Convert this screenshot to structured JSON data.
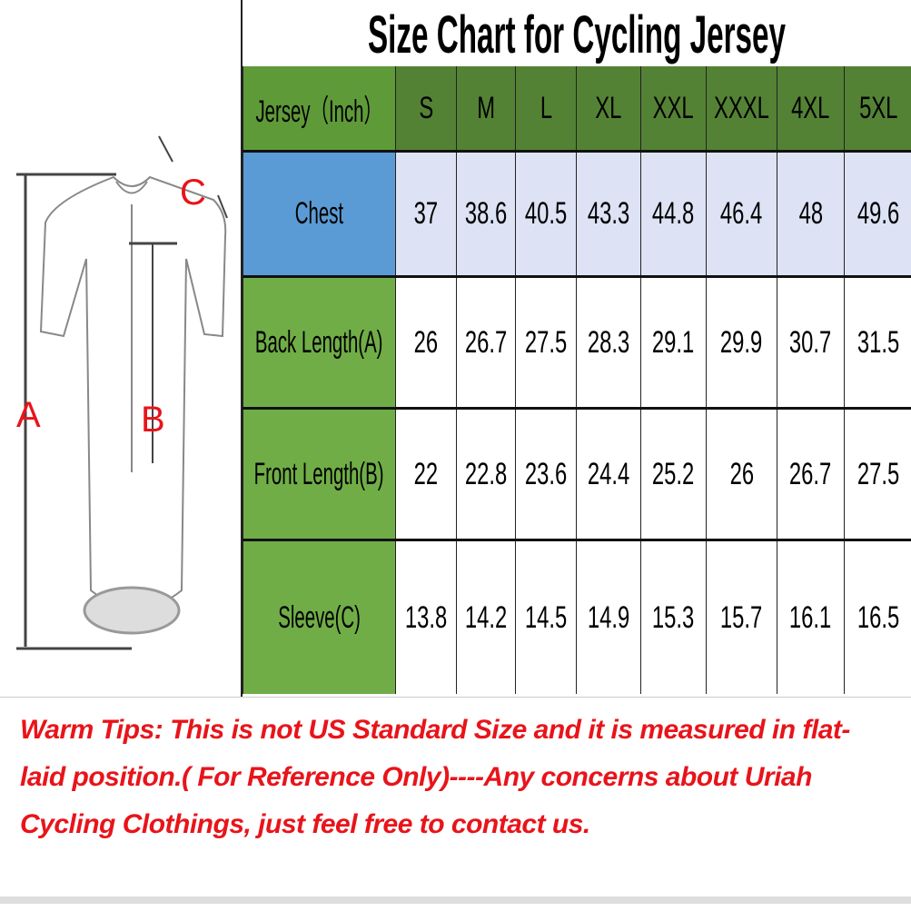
{
  "title": "Size Chart for Cycling Jersey",
  "diagram": {
    "labels": {
      "a": "A",
      "b": "B",
      "c": "C"
    }
  },
  "table": {
    "corner": "Jersey（Inch）",
    "sizes": [
      "S",
      "M",
      "L",
      "XL",
      "XXL",
      "XXXL",
      "4XL",
      "5XL"
    ],
    "rows": [
      {
        "label": "Chest",
        "values": [
          "37",
          "38.6",
          "40.5",
          "43.3",
          "44.8",
          "46.4",
          "48",
          "49.6"
        ]
      },
      {
        "label": "Back Length(A)",
        "values": [
          "26",
          "26.7",
          "27.5",
          "28.3",
          "29.1",
          "29.9",
          "30.7",
          "31.5"
        ]
      },
      {
        "label": "Front Length(B)",
        "values": [
          "22",
          "22.8",
          "23.6",
          "24.4",
          "25.2",
          "26",
          "26.7",
          "27.5"
        ]
      },
      {
        "label": "Sleeve(C)",
        "values": [
          "13.8",
          "14.2",
          "14.5",
          "14.9",
          "15.3",
          "15.7",
          "16.1",
          "16.5"
        ]
      }
    ]
  },
  "tips": "Warm Tips: This is not US Standard Size and it is measured in flat-laid position.( For Reference Only)----Any concerns about Uriah Cycling Clothings,  just feel free to contact us.",
  "colors": {
    "header_green": "#548235",
    "row_green": "#70ad47",
    "chest_blue": "#5b9bd5",
    "chest_row": "#dde3f4",
    "tips_red": "#e8141a"
  }
}
